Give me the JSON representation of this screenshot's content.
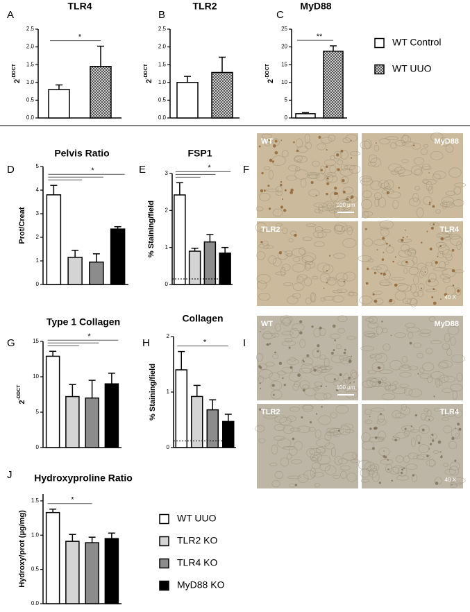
{
  "chart_data": [
    {
      "type": "bar",
      "panel": "A",
      "title": "TLR4",
      "ylabel": {
        "base": "2",
        "exponent": "-DDCT"
      },
      "values": [
        0.8,
        1.45
      ],
      "errors": [
        0.13,
        0.57
      ],
      "colors": [
        "#ffffff",
        "pattern"
      ],
      "ylim": [
        0,
        2.5
      ],
      "yticks": [
        {
          "value": 0,
          "label": "0.0"
        },
        0.5,
        {
          "value": 1,
          "label": "1.0"
        },
        1.5,
        {
          "value": 2,
          "label": "2.0"
        },
        2.5
      ],
      "significance": {
        "label": "*",
        "pairs": [
          [
            0,
            1
          ]
        ]
      }
    },
    {
      "type": "bar",
      "panel": "B",
      "title": "TLR2",
      "ylabel": {
        "base": "2",
        "exponent": "-DDCT"
      },
      "values": [
        1.0,
        1.28
      ],
      "errors": [
        0.17,
        0.43
      ],
      "colors": [
        "#ffffff",
        "pattern"
      ],
      "ylim": [
        0,
        2.5
      ],
      "yticks": [
        {
          "value": 0,
          "label": "0.0"
        },
        0.5,
        {
          "value": 1,
          "label": "1.0"
        },
        1.5,
        {
          "value": 2,
          "label": "2.0"
        },
        2.5
      ]
    },
    {
      "type": "bar",
      "panel": "C",
      "title": "MyD88",
      "ylabel": {
        "base": "2",
        "exponent": "-DDCT"
      },
      "values": [
        1.2,
        18.8
      ],
      "errors": [
        0.3,
        1.5
      ],
      "colors": [
        "#ffffff",
        "pattern"
      ],
      "ylim": [
        0,
        25
      ],
      "yticks": [
        0,
        5,
        10,
        15,
        20,
        25
      ],
      "significance": {
        "label": "**",
        "pairs": [
          [
            0,
            1
          ]
        ]
      }
    },
    {
      "type": "bar",
      "panel": "D",
      "title": "Pelvis Ratio",
      "ylabel": {
        "base": "Prot/Creat"
      },
      "values": [
        3.8,
        1.15,
        0.95,
        2.35
      ],
      "errors": [
        0.4,
        0.3,
        0.35,
        0.1
      ],
      "colors": [
        "#ffffff",
        "#d4d4d4",
        "#8c8c8c",
        "#000000"
      ],
      "ylim": [
        0,
        5
      ],
      "yticks": [
        0,
        1,
        2,
        3,
        4,
        5
      ],
      "significance": {
        "label": "*",
        "pairs": [
          [
            0,
            1
          ],
          [
            0,
            2
          ],
          [
            0,
            3
          ]
        ]
      }
    },
    {
      "type": "bar",
      "panel": "E",
      "title": "FSP1",
      "ylabel": {
        "base": "% Staining/field"
      },
      "values": [
        2.42,
        0.9,
        1.15,
        0.85
      ],
      "errors": [
        0.33,
        0.08,
        0.2,
        0.15
      ],
      "colors": [
        "#ffffff",
        "#d4d4d4",
        "#8c8c8c",
        "#000000"
      ],
      "ylim": [
        0,
        3
      ],
      "yticks": [
        0,
        1,
        2,
        3
      ],
      "reference_line": 0.15,
      "significance": {
        "label": "*",
        "pairs": [
          [
            0,
            1
          ],
          [
            0,
            2
          ],
          [
            0,
            3
          ]
        ]
      }
    },
    {
      "type": "bar",
      "panel": "G",
      "title": "Type 1 Collagen",
      "ylabel": {
        "base": "2",
        "exponent": "-DDCT"
      },
      "values": [
        12.9,
        7.2,
        7.0,
        9.0
      ],
      "errors": [
        0.7,
        1.7,
        2.5,
        1.5
      ],
      "colors": [
        "#ffffff",
        "#d4d4d4",
        "#8c8c8c",
        "#000000"
      ],
      "ylim": [
        0,
        15
      ],
      "yticks": [
        0,
        5,
        10,
        15
      ],
      "significance": {
        "label": "*",
        "pairs": [
          [
            0,
            1
          ],
          [
            0,
            2
          ],
          [
            0,
            3
          ]
        ]
      }
    },
    {
      "type": "bar",
      "panel": "H",
      "title": "Collagen",
      "ylabel": {
        "base": "% Staining/field"
      },
      "values": [
        1.4,
        0.92,
        0.68,
        0.47
      ],
      "errors": [
        0.33,
        0.2,
        0.18,
        0.13
      ],
      "colors": [
        "#ffffff",
        "#d4d4d4",
        "#8c8c8c",
        "#000000"
      ],
      "ylim": [
        0,
        2
      ],
      "yticks": [
        0,
        1,
        2
      ],
      "reference_line": 0.12,
      "significance": {
        "label": "*",
        "pairs": [
          [
            0,
            3
          ]
        ]
      }
    },
    {
      "type": "bar",
      "panel": "J",
      "title": "Hydroxyproline Ratio",
      "ylabel": {
        "base": "Hydroxy/prot (µg/mg)"
      },
      "values": [
        1.33,
        0.91,
        0.89,
        0.95
      ],
      "errors": [
        0.05,
        0.1,
        0.08,
        0.08
      ],
      "colors": [
        "#ffffff",
        "#d4d4d4",
        "#8c8c8c",
        "#000000"
      ],
      "ylim": [
        0,
        1.6
      ],
      "yticks": [
        {
          "value": 0,
          "label": "0.0"
        },
        0.5,
        {
          "value": 1,
          "label": "1.0"
        },
        1.5
      ],
      "significance": {
        "label": "*",
        "pairs": [
          [
            0,
            2
          ]
        ]
      }
    }
  ],
  "legends": [
    {
      "entries": [
        {
          "name": "WT Control",
          "color": "#ffffff"
        },
        {
          "name": "WT UUO",
          "color": "pattern"
        }
      ]
    },
    {
      "entries": [
        {
          "name": "WT UUO",
          "color": "#ffffff"
        },
        {
          "name": "TLR2 KO",
          "color": "#d4d4d4"
        },
        {
          "name": "TLR4 KO",
          "color": "#8c8c8c"
        },
        {
          "name": "MyD88 KO",
          "color": "#000000"
        }
      ]
    }
  ],
  "micrographs": [
    {
      "panel": "F",
      "tiles": [
        "WT",
        "MyD88",
        "TLR2",
        "TLR4"
      ],
      "scale_bar": "100 µm",
      "magnification": "40 X"
    },
    {
      "panel": "I",
      "tiles": [
        "WT",
        "MyD88",
        "TLR2",
        "TLR4"
      ],
      "scale_bar": "100 µm",
      "magnification": "40 X"
    }
  ]
}
